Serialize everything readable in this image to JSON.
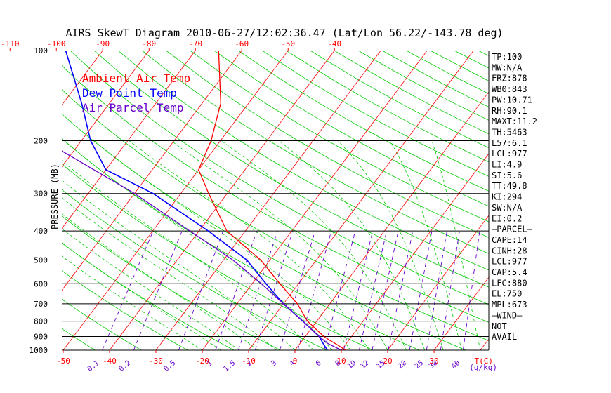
{
  "chart_data": {
    "type": "line",
    "title": "AIRS SkewT Diagram 2010-06-27/12:02:36.47 (Lat/Lon 56.22/-143.78 deg)",
    "ylabel": "PRESSURE (MB)",
    "bottom_axis_unit": "T(C)",
    "mixing_ratio_unit": "(g/kg)",
    "legend": [
      {
        "label": "Ambient Air Temp",
        "color": "#ff0000"
      },
      {
        "label": "Dew Point Temp",
        "color": "#0000ff"
      },
      {
        "label": "Air Parcel Temp",
        "color": "#6600cc"
      }
    ],
    "pressure_ticks": [
      "100",
      "200",
      "300",
      "400",
      "500",
      "600",
      "700",
      "800",
      "900",
      "1000"
    ],
    "pressure_lines": [
      1000,
      900,
      800,
      700,
      600,
      500,
      400,
      300,
      200
    ],
    "pressure_range": [
      100,
      1000
    ],
    "bottom_temp_ticks": [
      "-50",
      "-40",
      "-30",
      "-20",
      "-10",
      "0",
      "10",
      "20",
      "30"
    ],
    "top_temp_ticks": [
      "-120",
      "-110",
      "-100",
      "-90",
      "-80",
      "-70",
      "-60",
      "-50",
      "-40"
    ],
    "mixing_ratio_ticks": [
      "0.1",
      "0.2",
      "0.5",
      "1",
      "1.5",
      "2",
      "3",
      "4",
      "6",
      "8",
      "10",
      "12",
      "15",
      "20",
      "25",
      "30",
      "40"
    ],
    "series": [
      {
        "name": "Ambient Air Temp",
        "color": "#ff0000",
        "points": [
          {
            "p": 1000,
            "t": 11
          },
          {
            "p": 900,
            "t": 4
          },
          {
            "p": 800,
            "t": -2
          },
          {
            "p": 700,
            "t": -7
          },
          {
            "p": 600,
            "t": -14
          },
          {
            "p": 500,
            "t": -22
          },
          {
            "p": 400,
            "t": -34
          },
          {
            "p": 300,
            "t": -44
          },
          {
            "p": 250,
            "t": -50
          },
          {
            "p": 200,
            "t": -52
          },
          {
            "p": 150,
            "t": -56
          },
          {
            "p": 100,
            "t": -65
          }
        ]
      },
      {
        "name": "Dew Point Temp",
        "color": "#0000ff",
        "points": [
          {
            "p": 1000,
            "t": 7
          },
          {
            "p": 950,
            "t": 5
          },
          {
            "p": 900,
            "t": 3
          },
          {
            "p": 800,
            "t": -3
          },
          {
            "p": 700,
            "t": -10
          },
          {
            "p": 600,
            "t": -17
          },
          {
            "p": 500,
            "t": -25
          },
          {
            "p": 400,
            "t": -38
          },
          {
            "p": 300,
            "t": -56
          },
          {
            "p": 250,
            "t": -70
          },
          {
            "p": 200,
            "t": -78
          },
          {
            "p": 150,
            "t": -86
          },
          {
            "p": 100,
            "t": -98
          }
        ]
      },
      {
        "name": "Air Parcel Temp",
        "color": "#6600cc",
        "points": [
          {
            "p": 1000,
            "t": 10
          },
          {
            "p": 950,
            "t": 6
          },
          {
            "p": 900,
            "t": 3
          },
          {
            "p": 800,
            "t": -3
          },
          {
            "p": 700,
            "t": -10
          },
          {
            "p": 600,
            "t": -18
          },
          {
            "p": 500,
            "t": -28
          },
          {
            "p": 400,
            "t": -42
          },
          {
            "p": 300,
            "t": -60
          },
          {
            "p": 200,
            "t": -88
          },
          {
            "p": 150,
            "t": -105
          },
          {
            "p": 100,
            "t": -128
          }
        ]
      }
    ],
    "indices": [
      "TP:100",
      "MW:N/A",
      "FRZ:878",
      "WB0:843",
      "PW:10.71",
      "RH:90.1",
      "MAXT:11.2",
      "TH:5463",
      "L57:6.1",
      "LCL:977",
      "LI:4.9",
      "SI:5.6",
      "TT:49.8",
      "KI:294",
      "SW:N/A",
      "EI:0.2",
      "—PARCEL—",
      "CAPE:14",
      "CINH:28",
      "LCL:977",
      "CAP:5.4",
      "LFC:880",
      "EL:750",
      "MPL:673",
      "—WIND—",
      "NOT",
      "AVAIL"
    ],
    "colors": {
      "isotherm": "#ff0000",
      "dry_adiabat": "#00cc00",
      "moist_adiabat": "#00cc00",
      "mixing_ratio": "#6600cc",
      "isobar": "#000000"
    }
  }
}
